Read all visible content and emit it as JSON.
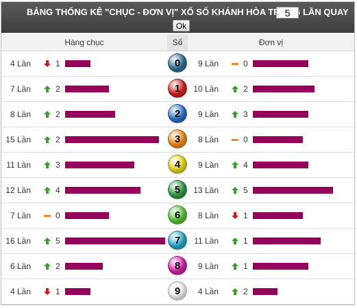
{
  "header": {
    "title_prefix": "BẢNG THỐNG KÊ \"CHỤC - ĐƠN VỊ\" XỔ SỐ KHÁNH HÒA TRONG",
    "count_value": "5",
    "title_suffix": "LẦN QUAY",
    "ok_label": "Ok"
  },
  "columns": {
    "tens": "Hàng chục",
    "number": "Số",
    "units": "Đơn vị"
  },
  "colors": {
    "bar": "#95005a",
    "up": "#3e9b2e",
    "down": "#d11919",
    "same": "#f08a2a"
  },
  "rows": [
    {
      "digit": "0",
      "ball_color": "#2f6f95",
      "tens": {
        "times": "4 Lần",
        "trend": "down",
        "delta": "1",
        "bar_fraction": 0.25
      },
      "units": {
        "times": "9 Lần",
        "trend": "same",
        "delta": "0",
        "bar_fraction": 0.69
      }
    },
    {
      "digit": "1",
      "ball_color": "#d32020",
      "tens": {
        "times": "7 Lần",
        "trend": "up",
        "delta": "2",
        "bar_fraction": 0.44
      },
      "units": {
        "times": "10 Lần",
        "trend": "up",
        "delta": "2",
        "bar_fraction": 0.77
      }
    },
    {
      "digit": "2",
      "ball_color": "#2a70c9",
      "tens": {
        "times": "8 Lần",
        "trend": "up",
        "delta": "2",
        "bar_fraction": 0.5
      },
      "units": {
        "times": "9 Lần",
        "trend": "up",
        "delta": "3",
        "bar_fraction": 0.69
      }
    },
    {
      "digit": "3",
      "ball_color": "#f08a18",
      "tens": {
        "times": "15 Lần",
        "trend": "up",
        "delta": "2",
        "bar_fraction": 0.94
      },
      "units": {
        "times": "8 Lần",
        "trend": "same",
        "delta": "0",
        "bar_fraction": 0.62
      }
    },
    {
      "digit": "4",
      "ball_color": "#e5d81e",
      "tens": {
        "times": "11 Lần",
        "trend": "up",
        "delta": "3",
        "bar_fraction": 0.69
      },
      "units": {
        "times": "9 Lần",
        "trend": "up",
        "delta": "4",
        "bar_fraction": 0.69
      }
    },
    {
      "digit": "5",
      "ball_color": "#2e9b45",
      "tens": {
        "times": "12 Lần",
        "trend": "up",
        "delta": "4",
        "bar_fraction": 0.75
      },
      "units": {
        "times": "13 Lần",
        "trend": "up",
        "delta": "5",
        "bar_fraction": 1.0
      }
    },
    {
      "digit": "6",
      "ball_color": "#58c43a",
      "tens": {
        "times": "7 Lần",
        "trend": "same",
        "delta": "0",
        "bar_fraction": 0.44
      },
      "units": {
        "times": "8 Lần",
        "trend": "down",
        "delta": "1",
        "bar_fraction": 0.62
      }
    },
    {
      "digit": "7",
      "ball_color": "#27a9c9",
      "tens": {
        "times": "16 Lần",
        "trend": "up",
        "delta": "5",
        "bar_fraction": 1.0
      },
      "units": {
        "times": "11 Lần",
        "trend": "up",
        "delta": "1",
        "bar_fraction": 0.85
      }
    },
    {
      "digit": "8",
      "ball_color": "#d61fa8",
      "tens": {
        "times": "6 Lần",
        "trend": "up",
        "delta": "2",
        "bar_fraction": 0.38
      },
      "units": {
        "times": "9 Lần",
        "trend": "up",
        "delta": "1",
        "bar_fraction": 0.69
      }
    },
    {
      "digit": "9",
      "ball_color": "#f2f2f2",
      "tens": {
        "times": "4 Lần",
        "trend": "down",
        "delta": "1",
        "bar_fraction": 0.25
      },
      "units": {
        "times": "4 Lần",
        "trend": "up",
        "delta": "2",
        "bar_fraction": 0.31
      }
    }
  ]
}
